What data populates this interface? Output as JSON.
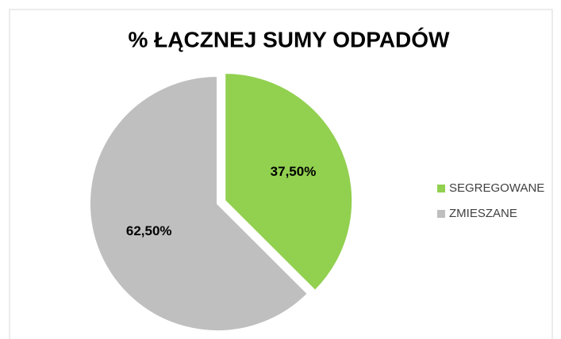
{
  "chart_data": {
    "type": "pie",
    "title": "% ŁĄCZNEJ SUMY ODPADÓW",
    "categories": [
      "SEGREGOWANE",
      "ZMIESZANE"
    ],
    "values": [
      37.5,
      62.5
    ],
    "value_labels": [
      "37,50%",
      "62,50%"
    ],
    "colors": [
      "#92d050",
      "#bfbfbf"
    ],
    "legend": "right"
  }
}
